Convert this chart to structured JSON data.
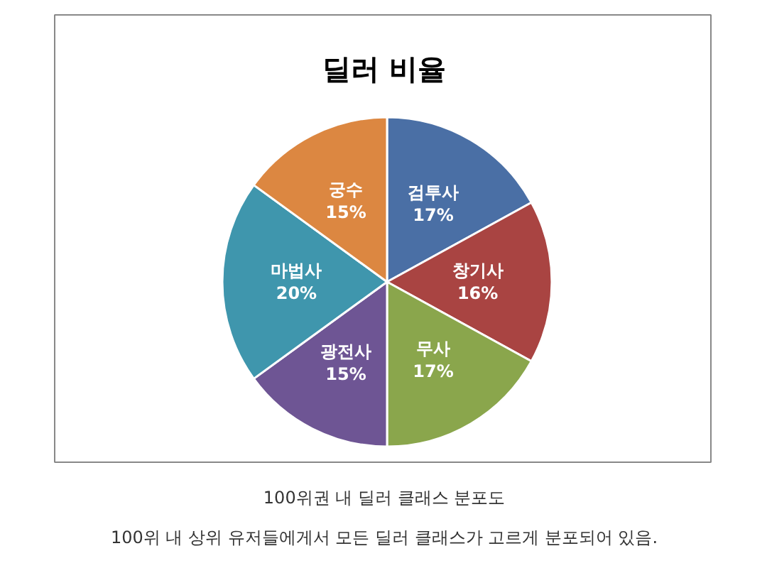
{
  "chart_data": {
    "type": "pie",
    "title": "딜러 비율",
    "categories": [
      "검투사",
      "창기사",
      "무사",
      "광전사",
      "마법사",
      "궁수"
    ],
    "values": [
      17,
      16,
      17,
      15,
      20,
      15
    ],
    "colors": [
      "#4a6fa5",
      "#a94442",
      "#8aa64c",
      "#6e5594",
      "#3f96ad",
      "#dc8741"
    ],
    "value_labels": [
      "17%",
      "16%",
      "17%",
      "15%",
      "20%",
      "15%"
    ],
    "legend": false,
    "annotations": [
      "100위권 내 딜러 클래스 분포도",
      "100위 내 상위 유저들에게서 모든 딜러 클래스가 고르게 분포되어 있음."
    ]
  }
}
